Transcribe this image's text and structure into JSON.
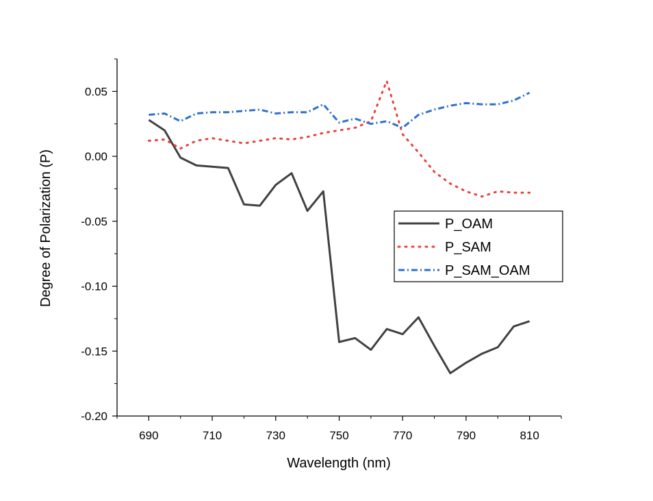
{
  "chart_data": {
    "type": "line",
    "title": "",
    "xlabel": "Wavelength (nm)",
    "ylabel": "Degree of Polarization (P)",
    "xlim": [
      680,
      820
    ],
    "ylim": [
      -0.2,
      0.075
    ],
    "xticks": [
      690,
      710,
      730,
      750,
      770,
      790,
      810
    ],
    "xtick_labels": [
      "690",
      "710",
      "730",
      "750",
      "770",
      "790",
      "810"
    ],
    "yticks": [
      -0.2,
      -0.15,
      -0.1,
      -0.05,
      0.0,
      0.05
    ],
    "ytick_labels": [
      "-0.20",
      "-0.15",
      "-0.10",
      "-0.05",
      "0.00",
      "0.05"
    ],
    "legend_position": "center-right",
    "series": [
      {
        "name": "P_OAM",
        "color": "#404040",
        "style": "solid",
        "x": [
          690,
          695,
          700,
          705,
          710,
          715,
          720,
          725,
          730,
          735,
          740,
          745,
          750,
          755,
          760,
          765,
          770,
          775,
          780,
          785,
          790,
          795,
          800,
          805,
          810
        ],
        "y": [
          0.028,
          0.02,
          -0.001,
          -0.007,
          -0.008,
          -0.009,
          -0.037,
          -0.038,
          -0.022,
          -0.013,
          -0.042,
          -0.027,
          -0.143,
          -0.14,
          -0.149,
          -0.133,
          -0.137,
          -0.124,
          -0.146,
          -0.167,
          -0.159,
          -0.152,
          -0.147,
          -0.131,
          -0.127
        ]
      },
      {
        "name": "P_SAM",
        "color": "#e8413c",
        "style": "dotted",
        "x": [
          690,
          695,
          700,
          705,
          710,
          715,
          720,
          725,
          730,
          735,
          740,
          745,
          750,
          755,
          760,
          765,
          770,
          775,
          780,
          785,
          790,
          795,
          800,
          805,
          810
        ],
        "y": [
          0.012,
          0.013,
          0.006,
          0.012,
          0.014,
          0.012,
          0.01,
          0.012,
          0.014,
          0.013,
          0.015,
          0.018,
          0.02,
          0.022,
          0.027,
          0.058,
          0.017,
          0.003,
          -0.012,
          -0.021,
          -0.027,
          -0.031,
          -0.027,
          -0.028,
          -0.028
        ]
      },
      {
        "name": "P_SAM_OAM",
        "color": "#2f6fd0",
        "style": "dashdot",
        "x": [
          690,
          695,
          700,
          705,
          710,
          715,
          720,
          725,
          730,
          735,
          740,
          745,
          750,
          755,
          760,
          765,
          770,
          775,
          780,
          785,
          790,
          795,
          800,
          805,
          810
        ],
        "y": [
          0.032,
          0.033,
          0.027,
          0.033,
          0.034,
          0.034,
          0.035,
          0.036,
          0.033,
          0.034,
          0.034,
          0.04,
          0.026,
          0.029,
          0.025,
          0.027,
          0.022,
          0.032,
          0.036,
          0.039,
          0.041,
          0.04,
          0.04,
          0.043,
          0.049
        ]
      }
    ]
  }
}
